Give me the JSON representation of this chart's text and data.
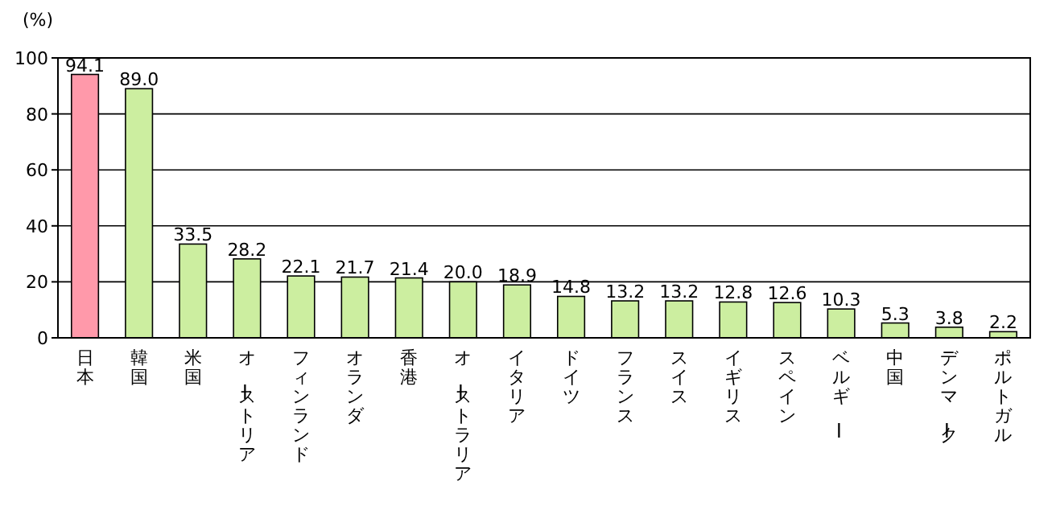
{
  "chart_data": {
    "type": "bar",
    "ylabel": "(%)",
    "categories": [
      "日本",
      "韓国",
      "米国",
      "オーストリア",
      "フィンランド",
      "オランダ",
      "香港",
      "オーストラリア",
      "イタリア",
      "ドイツ",
      "フランス",
      "スイス",
      "イギリス",
      "スペイン",
      "ベルギー",
      "中国",
      "デンマーク",
      "ポルトガル"
    ],
    "values": [
      94.1,
      89.0,
      33.5,
      28.2,
      22.1,
      21.7,
      21.4,
      20.0,
      18.9,
      14.8,
      13.2,
      13.2,
      12.8,
      12.6,
      10.3,
      5.3,
      3.8,
      2.2
    ],
    "colors": [
      "#ff99aa",
      "#cceea0",
      "#cceea0",
      "#cceea0",
      "#cceea0",
      "#cceea0",
      "#cceea0",
      "#cceea0",
      "#cceea0",
      "#cceea0",
      "#cceea0",
      "#cceea0",
      "#cceea0",
      "#cceea0",
      "#cceea0",
      "#cceea0",
      "#cceea0",
      "#cceea0"
    ],
    "value_labels": [
      "94.1",
      "89.0",
      "33.5",
      "28.2",
      "22.1",
      "21.7",
      "21.4",
      "20.0",
      "18.9",
      "14.8",
      "13.2",
      "13.2",
      "12.8",
      "12.6",
      "10.3",
      "5.3",
      "3.8",
      "2.2"
    ],
    "ylim": [
      0,
      100
    ],
    "yticks": [
      0,
      20,
      40,
      60,
      80,
      100
    ],
    "grid": "y"
  }
}
